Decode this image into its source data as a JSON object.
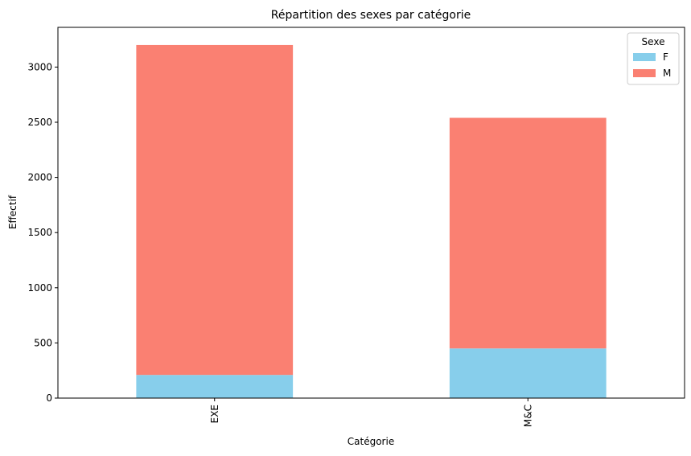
{
  "chart_data": {
    "type": "bar",
    "stacked": true,
    "title": "Répartition des sexes par catégorie",
    "xlabel": "Catégorie",
    "ylabel": "Effectif",
    "categories": [
      "EXE",
      "M&C"
    ],
    "series": [
      {
        "name": "F",
        "values": [
          210,
          450
        ],
        "color": "#87CEEB"
      },
      {
        "name": "M",
        "values": [
          2990,
          2090
        ],
        "color": "#FA8072"
      }
    ],
    "ylim": [
      0,
      3360
    ],
    "yticks": [
      0,
      500,
      1000,
      1500,
      2000,
      2500,
      3000
    ],
    "grid": false,
    "legend": {
      "title": "Sexe",
      "placement": "top-right"
    },
    "xtick_rotation": "vertical"
  }
}
